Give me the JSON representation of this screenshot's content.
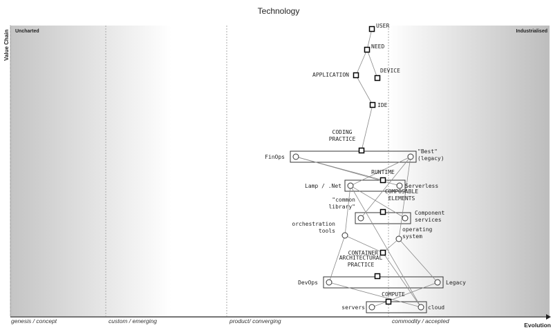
{
  "title": "Technology",
  "y_axis_label": "Value Chain",
  "x_axis_label": "Evolution",
  "corner_labels": {
    "left": "Uncharted",
    "right": "Industrialised"
  },
  "stages": [
    "genesis / concept",
    "custom / emerging",
    "product/ converging",
    "commodity / accepted"
  ],
  "components": [
    {
      "id": "user",
      "label": "USER",
      "shape": "square"
    },
    {
      "id": "need",
      "label": "NEED",
      "shape": "square"
    },
    {
      "id": "application",
      "label": "APPLICATION",
      "shape": "square"
    },
    {
      "id": "device",
      "label": "DEVICE",
      "shape": "square"
    },
    {
      "id": "ide",
      "label": "IDE",
      "shape": "square"
    },
    {
      "id": "coding",
      "label": "CODING\nPRACTICE",
      "shape": "square"
    },
    {
      "id": "finops",
      "label": "FinOps",
      "shape": "circle"
    },
    {
      "id": "best",
      "label": "\"Best\"\n(legacy)",
      "shape": "circle"
    },
    {
      "id": "runtime",
      "label": "RUNTIME",
      "shape": "square"
    },
    {
      "id": "lamp",
      "label": "Lamp / .Net",
      "shape": "circle"
    },
    {
      "id": "serverless",
      "label": "Serverless",
      "shape": "circle"
    },
    {
      "id": "composable",
      "label": "COMPOSABLE\nELEMENTS",
      "shape": "square"
    },
    {
      "id": "commonlib",
      "label": "\"common\nlibrary\"",
      "shape": "circle"
    },
    {
      "id": "compservices",
      "label": "Component\nservices",
      "shape": "circle"
    },
    {
      "id": "orchestration",
      "label": "orchestration\ntools",
      "shape": "circle"
    },
    {
      "id": "os",
      "label": "operating\nsystem",
      "shape": "circle"
    },
    {
      "id": "container",
      "label": "CONTAINER",
      "shape": "square"
    },
    {
      "id": "arch",
      "label": "ARCHITECTURAL\nPRACTICE",
      "shape": "square"
    },
    {
      "id": "devops",
      "label": "DevOps",
      "shape": "circle"
    },
    {
      "id": "legacy",
      "label": "Legacy",
      "shape": "circle"
    },
    {
      "id": "compute",
      "label": "COMPUTE",
      "shape": "square"
    },
    {
      "id": "servers",
      "label": "servers",
      "shape": "circle"
    },
    {
      "id": "cloud",
      "label": "cloud",
      "shape": "circle"
    }
  ],
  "links": [
    [
      "user",
      "need"
    ],
    [
      "need",
      "application"
    ],
    [
      "need",
      "device"
    ],
    [
      "application",
      "ide"
    ],
    [
      "ide",
      "coding"
    ],
    [
      "finops",
      "runtime"
    ],
    [
      "finops",
      "serverless"
    ],
    [
      "best",
      "lamp"
    ],
    [
      "best",
      "commonlib"
    ],
    [
      "lamp",
      "orchestration"
    ],
    [
      "lamp",
      "compservices"
    ],
    [
      "lamp",
      "cloud"
    ],
    [
      "orchestration",
      "devops"
    ],
    [
      "orchestration",
      "container"
    ],
    [
      "os",
      "container"
    ],
    [
      "os",
      "best"
    ],
    [
      "os",
      "legacy"
    ],
    [
      "container",
      "cloud"
    ],
    [
      "devops",
      "cloud"
    ],
    [
      "legacy",
      "servers"
    ]
  ],
  "groups": [
    {
      "anchor": "coding",
      "members": [
        "finops",
        "best"
      ]
    },
    {
      "anchor": "runtime",
      "members": [
        "lamp",
        "serverless"
      ]
    },
    {
      "anchor": "composable",
      "members": [
        "commonlib",
        "compservices"
      ]
    },
    {
      "anchor": "arch",
      "members": [
        "devops",
        "legacy"
      ]
    },
    {
      "anchor": "compute",
      "members": [
        "servers",
        "cloud"
      ]
    }
  ]
}
